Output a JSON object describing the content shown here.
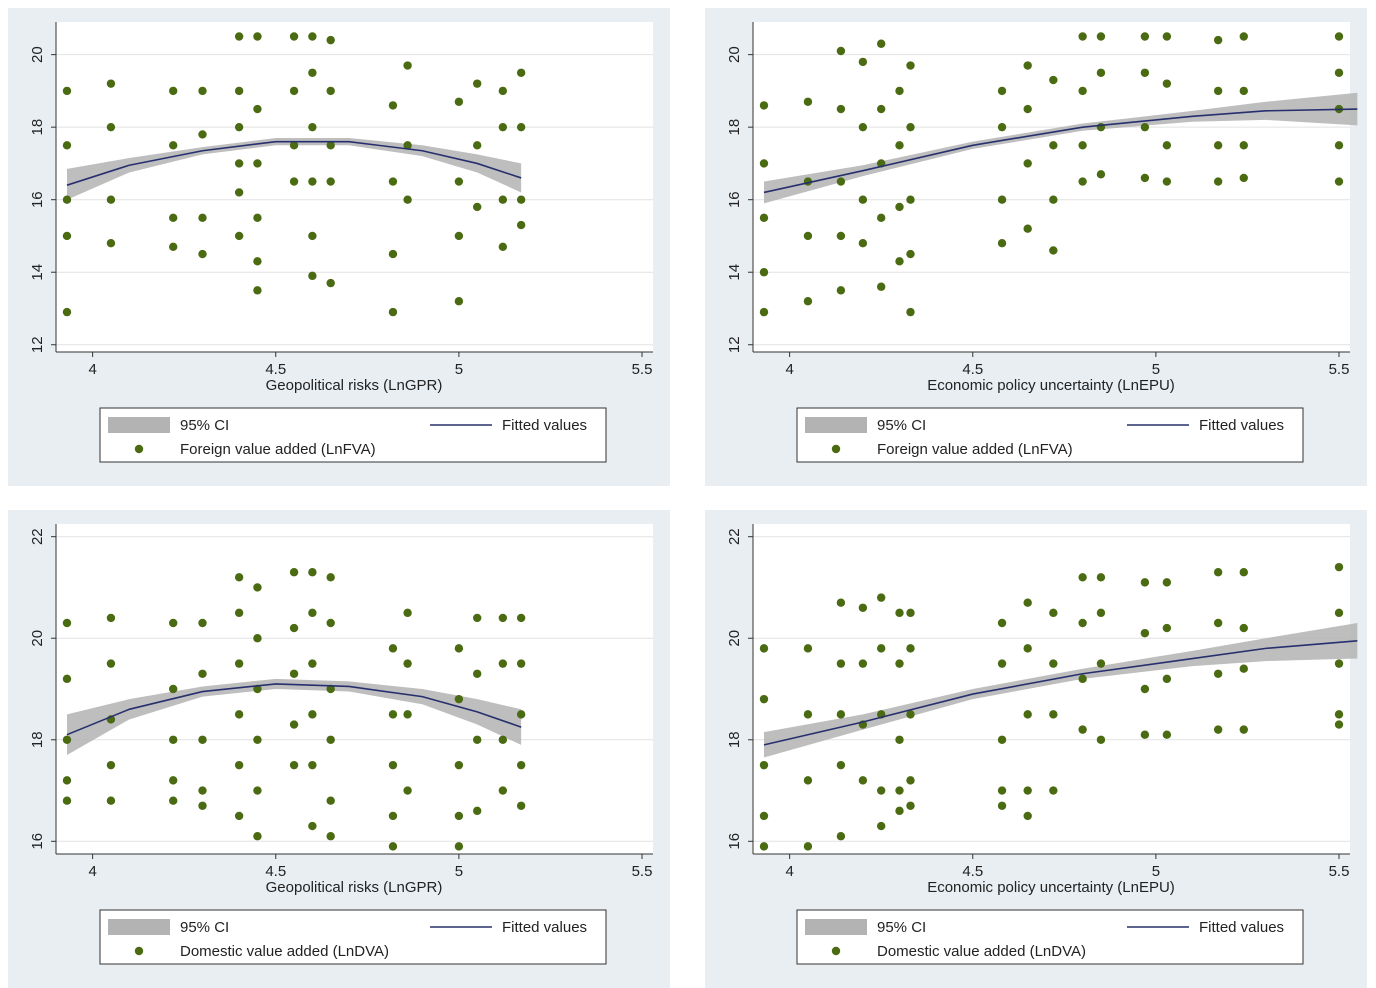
{
  "chart_data": [
    {
      "type": "scatter",
      "xlabel": "Geopolitical risks (LnGPR)",
      "xlim": [
        3.9,
        5.53
      ],
      "ylim": [
        11.8,
        20.9
      ],
      "xticks": [
        4,
        4.5,
        5,
        5.5
      ],
      "yticks": [
        12,
        14,
        16,
        18,
        20
      ],
      "grid": true,
      "ci": {
        "name": "95% CI",
        "color": "#b3b3b3",
        "x": [
          3.93,
          4.1,
          4.3,
          4.5,
          4.7,
          4.9,
          5.05,
          5.17
        ],
        "lower": [
          16.0,
          16.75,
          17.25,
          17.5,
          17.5,
          17.2,
          16.75,
          16.2
        ],
        "upper": [
          16.85,
          17.15,
          17.45,
          17.7,
          17.7,
          17.5,
          17.25,
          17.0
        ]
      },
      "fit": {
        "name": "Fitted values",
        "color": "#27306e",
        "x": [
          3.93,
          4.1,
          4.3,
          4.5,
          4.7,
          4.9,
          5.05,
          5.17
        ],
        "values": [
          16.4,
          16.95,
          17.35,
          17.6,
          17.6,
          17.35,
          17.0,
          16.6
        ]
      },
      "points": {
        "name": "Foreign value added (LnFVA)",
        "color": "#4b6b13",
        "x": [
          3.93,
          3.93,
          3.93,
          3.93,
          3.93,
          4.05,
          4.05,
          4.05,
          4.05,
          4.22,
          4.22,
          4.22,
          4.22,
          4.3,
          4.3,
          4.3,
          4.3,
          4.4,
          4.4,
          4.4,
          4.4,
          4.4,
          4.4,
          4.45,
          4.45,
          4.45,
          4.45,
          4.45,
          4.45,
          4.55,
          4.55,
          4.55,
          4.55,
          4.6,
          4.6,
          4.6,
          4.6,
          4.6,
          4.6,
          4.65,
          4.65,
          4.65,
          4.65,
          4.65,
          4.82,
          4.82,
          4.82,
          4.82,
          4.86,
          4.86,
          4.86,
          5.0,
          5.0,
          5.0,
          5.0,
          5.05,
          5.05,
          5.05,
          5.12,
          5.12,
          5.12,
          5.12,
          5.17,
          5.17,
          5.17,
          5.17
        ],
        "values": [
          19,
          17.5,
          16,
          15,
          12.9,
          19.2,
          18,
          16,
          14.8,
          19,
          17.5,
          15.5,
          14.7,
          19,
          17.8,
          15.5,
          14.5,
          20.5,
          19,
          18,
          17,
          16.2,
          15,
          20.5,
          18.5,
          17,
          15.5,
          13.5,
          14.3,
          20.5,
          19,
          17.5,
          16.5,
          20.5,
          19.5,
          18,
          16.5,
          15,
          13.9,
          20.4,
          19,
          17.5,
          16.5,
          13.7,
          18.6,
          16.5,
          14.5,
          12.9,
          19.7,
          17.5,
          16,
          18.7,
          16.5,
          15,
          13.2,
          19.2,
          17.5,
          15.8,
          19,
          18,
          16,
          14.7,
          19.5,
          18,
          16,
          15.3
        ]
      }
    },
    {
      "type": "scatter",
      "xlabel": "Economic policy uncertainty (LnEPU)",
      "xlim": [
        3.9,
        5.53
      ],
      "ylim": [
        11.8,
        20.9
      ],
      "xticks": [
        4,
        4.5,
        5,
        5.5
      ],
      "yticks": [
        12,
        14,
        16,
        18,
        20
      ],
      "grid": true,
      "ci": {
        "name": "95% CI",
        "color": "#b3b3b3",
        "x": [
          3.93,
          4.2,
          4.5,
          4.8,
          5.1,
          5.3,
          5.55
        ],
        "lower": [
          15.9,
          16.65,
          17.4,
          17.9,
          18.15,
          18.2,
          18.05
        ],
        "upper": [
          16.5,
          16.95,
          17.6,
          18.1,
          18.45,
          18.7,
          18.95
        ]
      },
      "fit": {
        "name": "Fitted values",
        "color": "#27306e",
        "x": [
          3.93,
          4.2,
          4.5,
          4.8,
          5.1,
          5.3,
          5.55
        ],
        "values": [
          16.2,
          16.8,
          17.5,
          18.0,
          18.3,
          18.45,
          18.5
        ]
      },
      "points": {
        "name": "Foreign value added (LnFVA)",
        "color": "#4b6b13",
        "x": [
          3.93,
          3.93,
          3.93,
          3.93,
          3.93,
          4.05,
          4.05,
          4.05,
          4.05,
          4.14,
          4.14,
          4.14,
          4.14,
          4.14,
          4.2,
          4.2,
          4.2,
          4.2,
          4.25,
          4.25,
          4.25,
          4.25,
          4.25,
          4.3,
          4.3,
          4.3,
          4.3,
          4.33,
          4.33,
          4.33,
          4.33,
          4.33,
          4.58,
          4.58,
          4.58,
          4.58,
          4.65,
          4.65,
          4.65,
          4.65,
          4.72,
          4.72,
          4.72,
          4.72,
          4.8,
          4.8,
          4.8,
          4.8,
          4.85,
          4.85,
          4.85,
          4.85,
          4.97,
          4.97,
          4.97,
          4.97,
          5.03,
          5.03,
          5.03,
          5.03,
          5.17,
          5.17,
          5.17,
          5.17,
          5.24,
          5.24,
          5.24,
          5.24,
          5.5,
          5.5,
          5.5,
          5.5,
          5.5
        ],
        "values": [
          18.6,
          17,
          15.5,
          14,
          12.9,
          18.7,
          16.5,
          15,
          13.2,
          20.1,
          18.5,
          16.5,
          15,
          13.5,
          19.8,
          18,
          16,
          14.8,
          20.3,
          18.5,
          17,
          15.5,
          13.6,
          19,
          17.5,
          15.8,
          14.3,
          19.7,
          18,
          16,
          14.5,
          12.9,
          19,
          18,
          16,
          14.8,
          19.7,
          18.5,
          17,
          15.2,
          19.3,
          17.5,
          16,
          14.6,
          20.5,
          19,
          17.5,
          16.5,
          20.5,
          19.5,
          18,
          16.7,
          20.5,
          19.5,
          18,
          16.6,
          20.5,
          19.2,
          17.5,
          16.5,
          20.4,
          19,
          17.5,
          16.5,
          20.5,
          19,
          17.5,
          16.6,
          20.5,
          19.5,
          18.5,
          17.5,
          16.5
        ]
      }
    },
    {
      "type": "scatter",
      "xlabel": "Geopolitical risks (LnGPR)",
      "xlim": [
        3.9,
        5.53
      ],
      "ylim": [
        15.75,
        22.25
      ],
      "xticks": [
        4,
        4.5,
        5,
        5.5
      ],
      "yticks": [
        16,
        18,
        20,
        22
      ],
      "grid": true,
      "ci": {
        "name": "95% CI",
        "color": "#b3b3b3",
        "x": [
          3.93,
          4.1,
          4.3,
          4.5,
          4.7,
          4.9,
          5.05,
          5.17
        ],
        "lower": [
          17.7,
          18.4,
          18.85,
          19.0,
          18.95,
          18.7,
          18.3,
          17.9
        ],
        "upper": [
          18.5,
          18.8,
          19.05,
          19.2,
          19.15,
          19.0,
          18.8,
          18.6
        ]
      },
      "fit": {
        "name": "Fitted values",
        "color": "#27306e",
        "x": [
          3.93,
          4.1,
          4.3,
          4.5,
          4.7,
          4.9,
          5.05,
          5.17
        ],
        "values": [
          18.1,
          18.6,
          18.95,
          19.1,
          19.05,
          18.85,
          18.55,
          18.25
        ]
      },
      "points": {
        "name": "Domestic value added (LnDVA)",
        "color": "#4b6b13",
        "x": [
          3.93,
          3.93,
          3.93,
          3.93,
          3.93,
          4.05,
          4.05,
          4.05,
          4.05,
          4.05,
          4.22,
          4.22,
          4.22,
          4.22,
          4.22,
          4.3,
          4.3,
          4.3,
          4.3,
          4.3,
          4.4,
          4.4,
          4.4,
          4.4,
          4.4,
          4.4,
          4.45,
          4.45,
          4.45,
          4.45,
          4.45,
          4.45,
          4.55,
          4.55,
          4.55,
          4.55,
          4.55,
          4.6,
          4.6,
          4.6,
          4.6,
          4.6,
          4.6,
          4.65,
          4.65,
          4.65,
          4.65,
          4.65,
          4.65,
          4.82,
          4.82,
          4.82,
          4.82,
          4.82,
          4.86,
          4.86,
          4.86,
          4.86,
          5.0,
          5.0,
          5.0,
          5.0,
          5.0,
          5.05,
          5.05,
          5.05,
          5.05,
          5.12,
          5.12,
          5.12,
          5.12,
          5.17,
          5.17,
          5.17,
          5.17,
          5.17
        ],
        "values": [
          20.3,
          19.2,
          18,
          17.2,
          16.8,
          20.4,
          19.5,
          18.4,
          17.5,
          16.8,
          20.3,
          19,
          18,
          17.2,
          16.8,
          20.3,
          19.3,
          18,
          17,
          16.7,
          21.2,
          20.5,
          19.5,
          18.5,
          17.5,
          16.5,
          21,
          20,
          19,
          18,
          17,
          16.1,
          21.3,
          20.2,
          19.3,
          18.3,
          17.5,
          21.3,
          20.5,
          19.5,
          18.5,
          17.5,
          16.3,
          21.2,
          20.3,
          19,
          18,
          16.8,
          16.1,
          19.8,
          18.5,
          17.5,
          16.5,
          15.9,
          20.5,
          19.5,
          18.5,
          17,
          19.8,
          18.8,
          17.5,
          16.5,
          15.9,
          20.4,
          19.3,
          18,
          16.6,
          20.4,
          19.5,
          18,
          17,
          20.4,
          19.5,
          18.5,
          17.5,
          16.7
        ]
      }
    },
    {
      "type": "scatter",
      "xlabel": "Economic policy uncertainty (LnEPU)",
      "xlim": [
        3.9,
        5.53
      ],
      "ylim": [
        15.75,
        22.25
      ],
      "xticks": [
        4,
        4.5,
        5,
        5.5
      ],
      "yticks": [
        16,
        18,
        20,
        22
      ],
      "grid": true,
      "ci": {
        "name": "95% CI",
        "color": "#b3b3b3",
        "x": [
          3.93,
          4.2,
          4.5,
          4.8,
          5.1,
          5.3,
          5.55
        ],
        "lower": [
          17.65,
          18.2,
          18.8,
          19.2,
          19.45,
          19.55,
          19.6
        ],
        "upper": [
          18.15,
          18.5,
          19.0,
          19.4,
          19.75,
          20.0,
          20.3
        ]
      },
      "fit": {
        "name": "Fitted values",
        "color": "#27306e",
        "x": [
          3.93,
          4.2,
          4.5,
          4.8,
          5.1,
          5.3,
          5.55
        ],
        "values": [
          17.9,
          18.35,
          18.9,
          19.3,
          19.6,
          19.8,
          19.95
        ]
      },
      "points": {
        "name": "Domestic value added (LnDVA)",
        "color": "#4b6b13",
        "x": [
          3.93,
          3.93,
          3.93,
          3.93,
          3.93,
          4.05,
          4.05,
          4.05,
          4.05,
          4.14,
          4.14,
          4.14,
          4.14,
          4.14,
          4.2,
          4.2,
          4.2,
          4.2,
          4.25,
          4.25,
          4.25,
          4.25,
          4.25,
          4.3,
          4.3,
          4.3,
          4.3,
          4.3,
          4.33,
          4.33,
          4.33,
          4.33,
          4.33,
          4.58,
          4.58,
          4.58,
          4.58,
          4.58,
          4.65,
          4.65,
          4.65,
          4.65,
          4.65,
          4.72,
          4.72,
          4.72,
          4.72,
          4.8,
          4.8,
          4.8,
          4.8,
          4.85,
          4.85,
          4.85,
          4.85,
          4.97,
          4.97,
          4.97,
          4.97,
          5.03,
          5.03,
          5.03,
          5.03,
          5.17,
          5.17,
          5.17,
          5.17,
          5.24,
          5.24,
          5.24,
          5.24,
          5.5,
          5.5,
          5.5,
          5.5,
          5.5
        ],
        "values": [
          19.8,
          18.8,
          17.5,
          16.5,
          15.9,
          19.8,
          18.5,
          17.2,
          15.9,
          20.7,
          19.5,
          18.5,
          17.5,
          16.1,
          20.6,
          19.5,
          18.3,
          17.2,
          20.8,
          19.8,
          18.5,
          17,
          16.3,
          20.5,
          19.5,
          18,
          17,
          16.6,
          20.5,
          19.8,
          18.5,
          17.2,
          16.7,
          20.3,
          19.5,
          18,
          17,
          16.7,
          20.7,
          19.8,
          18.5,
          17,
          16.5,
          20.5,
          19.5,
          18.5,
          17,
          21.2,
          20.3,
          19.2,
          18.2,
          21.2,
          20.5,
          19.5,
          18,
          21.1,
          20.1,
          19,
          18.1,
          21.1,
          20.2,
          19.2,
          18.1,
          21.3,
          20.3,
          19.3,
          18.2,
          21.3,
          20.2,
          19.4,
          18.2,
          21.4,
          20.5,
          19.5,
          18.5,
          18.3
        ]
      }
    }
  ]
}
